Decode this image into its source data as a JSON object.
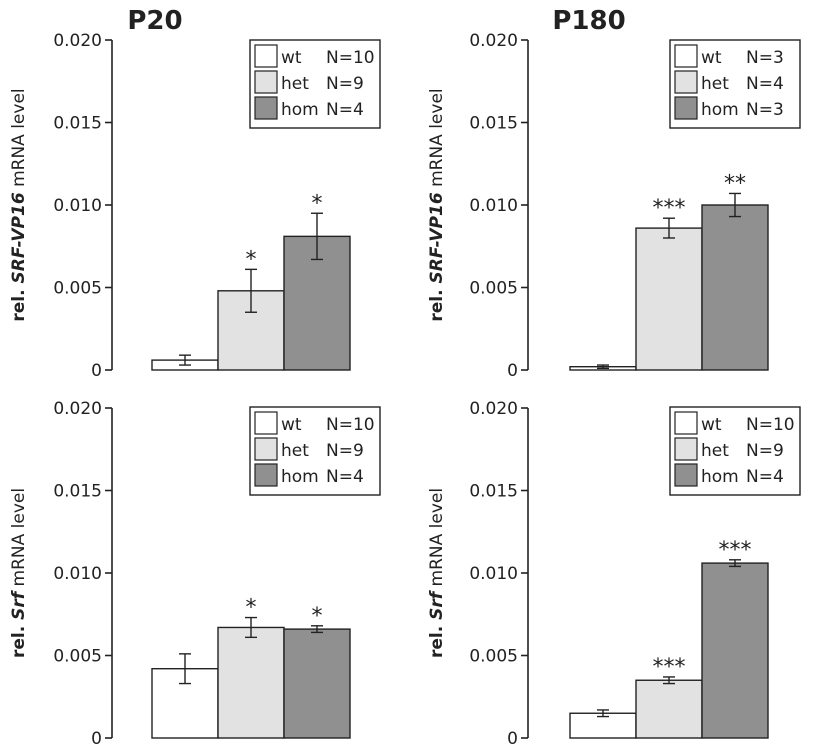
{
  "figure": {
    "column_titles": [
      "P20",
      "P180"
    ]
  },
  "chart_data": [
    {
      "type": "bar",
      "title": "P20",
      "ylabel": {
        "prefix": "rel. ",
        "gene": "SRF-VP16",
        "suffix": " mRNA level"
      },
      "ylim": [
        0,
        0.02
      ],
      "yticks": [
        0,
        0.005,
        0.01,
        0.015,
        0.02
      ],
      "yticklabels": [
        "0",
        "0.005",
        "0.010",
        "0.015",
        "0.020"
      ],
      "categories": [
        "wt",
        "het",
        "hom"
      ],
      "values": [
        0.0006,
        0.0048,
        0.0081
      ],
      "errors": [
        0.0003,
        0.0013,
        0.0014
      ],
      "annotations": [
        "",
        "*",
        "*"
      ],
      "legend": [
        {
          "label": "wt",
          "n": "N=10",
          "color": "#ffffff"
        },
        {
          "label": "het",
          "n": "N=9",
          "color": "#e2e2e2"
        },
        {
          "label": "hom",
          "n": "N=4",
          "color": "#909090"
        }
      ],
      "legend_position": "top-right"
    },
    {
      "type": "bar",
      "title": "P180",
      "ylabel": {
        "prefix": "rel. ",
        "gene": "SRF-VP16",
        "suffix": " mRNA level"
      },
      "ylim": [
        0,
        0.02
      ],
      "yticks": [
        0,
        0.005,
        0.01,
        0.015,
        0.02
      ],
      "yticklabels": [
        "0",
        "0.005",
        "0.010",
        "0.015",
        "0.020"
      ],
      "categories": [
        "wt",
        "het",
        "hom"
      ],
      "values": [
        0.0002,
        0.0086,
        0.01
      ],
      "errors": [
        0.0001,
        0.0006,
        0.0007
      ],
      "annotations": [
        "",
        "***",
        "**"
      ],
      "legend": [
        {
          "label": "wt",
          "n": "N=3",
          "color": "#ffffff"
        },
        {
          "label": "het",
          "n": "N=4",
          "color": "#e2e2e2"
        },
        {
          "label": "hom",
          "n": "N=3",
          "color": "#909090"
        }
      ],
      "legend_position": "top-right"
    },
    {
      "type": "bar",
      "title": "",
      "ylabel": {
        "prefix": "rel. ",
        "gene": "Srf",
        "suffix": " mRNA level"
      },
      "ylim": [
        0,
        0.02
      ],
      "yticks": [
        0,
        0.005,
        0.01,
        0.015,
        0.02
      ],
      "yticklabels": [
        "0",
        "0.005",
        "0.010",
        "0.015",
        "0.020"
      ],
      "categories": [
        "wt",
        "het",
        "hom"
      ],
      "values": [
        0.0042,
        0.0067,
        0.0066
      ],
      "errors": [
        0.0009,
        0.0006,
        0.0002
      ],
      "annotations": [
        "",
        "*",
        "*"
      ],
      "legend": [
        {
          "label": "wt",
          "n": "N=10",
          "color": "#ffffff"
        },
        {
          "label": "het",
          "n": "N=9",
          "color": "#e2e2e2"
        },
        {
          "label": "hom",
          "n": "N=4",
          "color": "#909090"
        }
      ],
      "legend_position": "top-right"
    },
    {
      "type": "bar",
      "title": "",
      "ylabel": {
        "prefix": "rel. ",
        "gene": "Srf",
        "suffix": " mRNA level"
      },
      "ylim": [
        0,
        0.02
      ],
      "yticks": [
        0,
        0.005,
        0.01,
        0.015,
        0.02
      ],
      "yticklabels": [
        "0",
        "0.005",
        "0.010",
        "0.015",
        "0.020"
      ],
      "categories": [
        "wt",
        "het",
        "hom"
      ],
      "values": [
        0.0015,
        0.0035,
        0.0106
      ],
      "errors": [
        0.0002,
        0.0002,
        0.0002
      ],
      "annotations": [
        "",
        "***",
        "***"
      ],
      "legend": [
        {
          "label": "wt",
          "n": "N=10",
          "color": "#ffffff"
        },
        {
          "label": "het",
          "n": "N=9",
          "color": "#e2e2e2"
        },
        {
          "label": "hom",
          "n": "N=4",
          "color": "#909090"
        }
      ],
      "legend_position": "top-right"
    }
  ]
}
